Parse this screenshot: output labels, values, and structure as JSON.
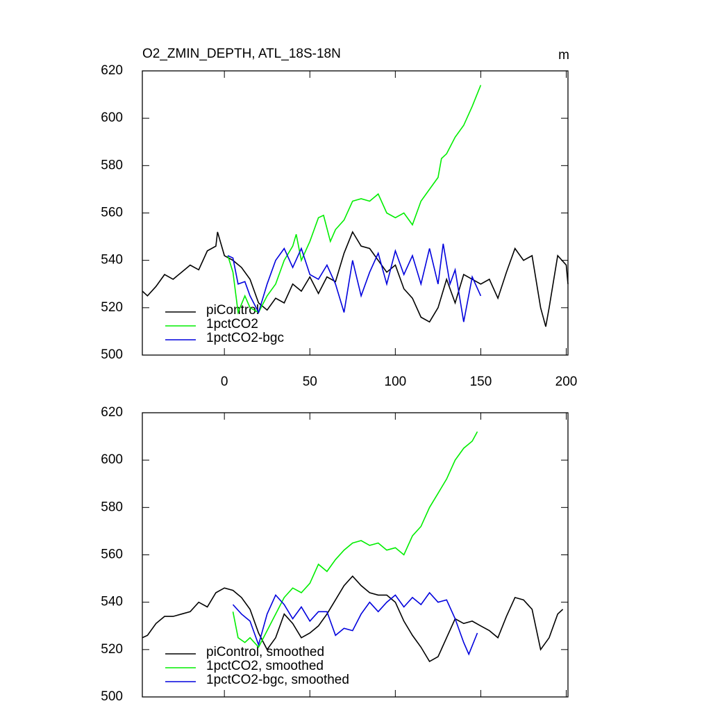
{
  "chart_data": [
    {
      "type": "line",
      "title": "O2_ZMIN_DEPTH, ATL_18S-18N",
      "units": "m",
      "legend": "lower left",
      "xlim": [
        -48,
        201
      ],
      "xticks": [
        0,
        50,
        100,
        150,
        200
      ],
      "ylim": [
        500,
        620
      ],
      "yticks": [
        500,
        520,
        540,
        560,
        580,
        600,
        620
      ],
      "series": [
        {
          "name": "piControl",
          "color": "#000000",
          "x": [
            -48,
            -45,
            -40,
            -35,
            -30,
            -25,
            -20,
            -15,
            -10,
            -5,
            -4,
            0,
            5,
            10,
            15,
            20,
            25,
            30,
            35,
            40,
            45,
            50,
            55,
            60,
            65,
            70,
            75,
            80,
            85,
            90,
            95,
            100,
            105,
            110,
            115,
            120,
            125,
            130,
            135,
            140,
            145,
            150,
            155,
            160,
            165,
            170,
            175,
            180,
            185,
            188,
            190,
            195,
            200,
            201
          ],
          "values": [
            527,
            525,
            529,
            534,
            532,
            535,
            538,
            536,
            544,
            546,
            552,
            542,
            540,
            537,
            532,
            522,
            519,
            524,
            522,
            530,
            527,
            533,
            526,
            533,
            531,
            543,
            552,
            546,
            545,
            540,
            535,
            538,
            528,
            524,
            516,
            514,
            520,
            532,
            522,
            534,
            532,
            530,
            532,
            524,
            535,
            545,
            540,
            542,
            520,
            512,
            520,
            542,
            538,
            530
          ]
        },
        {
          "name": "1pctCO2",
          "color": "#00ee00",
          "x": [
            2,
            5,
            8,
            12,
            15,
            20,
            25,
            30,
            35,
            40,
            42,
            45,
            50,
            55,
            58,
            62,
            65,
            70,
            75,
            80,
            85,
            90,
            95,
            100,
            105,
            110,
            115,
            120,
            125,
            127,
            130,
            135,
            140,
            145,
            150
          ],
          "values": [
            542,
            535,
            518,
            525,
            520,
            518,
            525,
            530,
            540,
            546,
            551,
            540,
            548,
            558,
            559,
            548,
            553,
            557,
            565,
            566,
            565,
            568,
            560,
            558,
            560,
            555,
            565,
            570,
            575,
            583,
            585,
            592,
            597,
            605,
            614
          ]
        },
        {
          "name": "1pctCO2-bgc",
          "color": "#0000dd",
          "x": [
            2,
            5,
            8,
            12,
            15,
            20,
            25,
            30,
            35,
            40,
            45,
            50,
            55,
            60,
            65,
            70,
            75,
            80,
            85,
            90,
            95,
            100,
            105,
            110,
            115,
            120,
            125,
            128,
            132,
            135,
            140,
            145,
            150
          ],
          "values": [
            542,
            541,
            530,
            531,
            525,
            518,
            530,
            540,
            545,
            537,
            545,
            534,
            532,
            538,
            530,
            518,
            540,
            525,
            535,
            543,
            530,
            544,
            534,
            542,
            530,
            545,
            530,
            547,
            530,
            536,
            514,
            533,
            525
          ]
        }
      ]
    },
    {
      "type": "line",
      "legend": "lower left",
      "xlim": [
        -48,
        201
      ],
      "ylim": [
        500,
        620
      ],
      "yticks": [
        500,
        520,
        540,
        560,
        580,
        600,
        620
      ],
      "series": [
        {
          "name": "piControl, smoothed",
          "color": "#000000",
          "x": [
            -48,
            -45,
            -40,
            -35,
            -30,
            -25,
            -20,
            -15,
            -10,
            -5,
            0,
            5,
            10,
            15,
            20,
            25,
            30,
            35,
            40,
            45,
            50,
            55,
            60,
            65,
            70,
            75,
            80,
            85,
            90,
            95,
            100,
            105,
            110,
            115,
            120,
            125,
            130,
            135,
            140,
            145,
            150,
            155,
            160,
            165,
            170,
            175,
            180,
            185,
            190,
            195,
            198
          ],
          "values": [
            525,
            526,
            531,
            534,
            534,
            535,
            536,
            540,
            538,
            544,
            546,
            545,
            542,
            537,
            527,
            520,
            525,
            535,
            531,
            525,
            527,
            530,
            535,
            541,
            547,
            551,
            547,
            544,
            543,
            543,
            540,
            532,
            526,
            521,
            515,
            517,
            525,
            533,
            531,
            532,
            530,
            528,
            525,
            534,
            542,
            541,
            537,
            520,
            525,
            535,
            537
          ]
        },
        {
          "name": "1pctCO2, smoothed",
          "color": "#00ee00",
          "x": [
            5,
            8,
            12,
            15,
            20,
            25,
            30,
            35,
            40,
            45,
            50,
            55,
            60,
            65,
            70,
            75,
            80,
            85,
            90,
            95,
            100,
            105,
            110,
            115,
            120,
            125,
            130,
            135,
            140,
            145,
            148
          ],
          "values": [
            536,
            525,
            523,
            525,
            521,
            528,
            535,
            542,
            546,
            544,
            548,
            556,
            553,
            558,
            562,
            565,
            566,
            564,
            565,
            562,
            563,
            560,
            568,
            572,
            580,
            586,
            592,
            600,
            605,
            608,
            612
          ]
        },
        {
          "name": "1pctCO2-bgc, smoothed",
          "color": "#0000dd",
          "x": [
            5,
            10,
            15,
            20,
            25,
            30,
            35,
            40,
            45,
            50,
            55,
            60,
            65,
            70,
            75,
            80,
            85,
            90,
            95,
            100,
            105,
            110,
            115,
            120,
            125,
            130,
            135,
            140,
            143,
            148
          ],
          "values": [
            539,
            535,
            532,
            522,
            535,
            543,
            539,
            533,
            538,
            532,
            536,
            536,
            526,
            529,
            528,
            535,
            540,
            536,
            540,
            543,
            538,
            542,
            539,
            544,
            540,
            541,
            533,
            523,
            518,
            527
          ]
        }
      ]
    }
  ]
}
